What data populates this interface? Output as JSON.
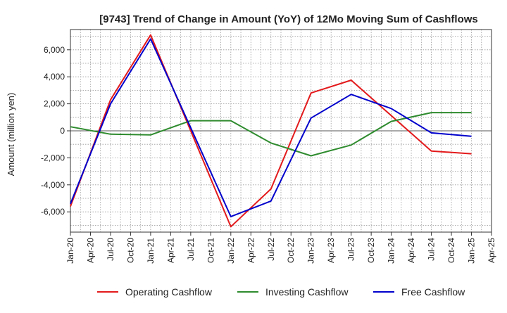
{
  "chart_data": {
    "type": "line",
    "title": "[9743]  Trend of Change in Amount (YoY) of 12Mo Moving Sum of Cashflows",
    "xlabel": "",
    "ylabel": "Amount (million yen)",
    "ylim": [
      -7500,
      7500
    ],
    "yticks": [
      -6000,
      -4000,
      -2000,
      0,
      2000,
      4000,
      6000
    ],
    "ytick_labels": [
      "-6,000",
      "-4,000",
      "-2,000",
      "0",
      "2,000",
      "4,000",
      "6,000"
    ],
    "categories": [
      "Jan-20",
      "Apr-20",
      "Jul-20",
      "Oct-20",
      "Jan-21",
      "Apr-21",
      "Jul-21",
      "Oct-21",
      "Jan-22",
      "Apr-22",
      "Jul-22",
      "Oct-22",
      "Jan-23",
      "Apr-23",
      "Jul-23",
      "Oct-23",
      "Jan-24",
      "Apr-24",
      "Jul-24",
      "Oct-24",
      "Jan-25",
      "Apr-25"
    ],
    "grid": true,
    "legend_position": "bottom",
    "series": [
      {
        "name": "Operating Cashflow",
        "color": "#e31a1c",
        "values": [
          -5600,
          null,
          2300,
          null,
          7100,
          null,
          null,
          null,
          -7100,
          null,
          -4300,
          null,
          2800,
          null,
          3750,
          null,
          null,
          null,
          -1500,
          null,
          -1700,
          null
        ]
      },
      {
        "name": "Investing Cashflow",
        "color": "#2e8b2e",
        "values": [
          300,
          null,
          -250,
          null,
          -300,
          null,
          750,
          null,
          750,
          null,
          -900,
          null,
          -1850,
          null,
          -1050,
          null,
          700,
          null,
          1350,
          null,
          1350,
          null
        ]
      },
      {
        "name": "Free Cashflow",
        "color": "#0000cc",
        "values": [
          -5400,
          null,
          2000,
          null,
          6800,
          null,
          null,
          null,
          -6350,
          null,
          -5200,
          null,
          950,
          null,
          2700,
          null,
          1650,
          null,
          -150,
          null,
          -400,
          null
        ]
      }
    ]
  }
}
